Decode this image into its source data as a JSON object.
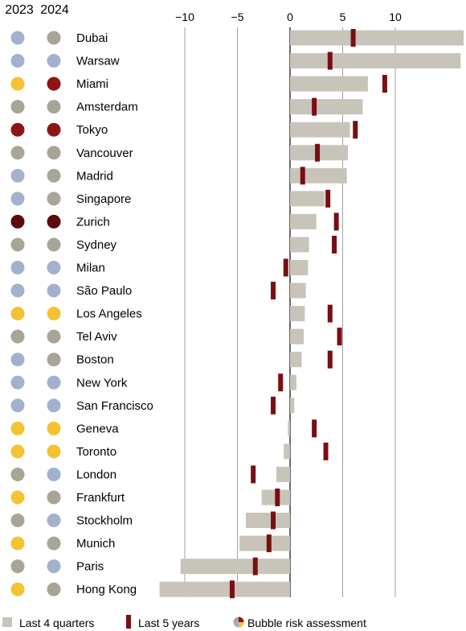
{
  "chart_data": {
    "type": "bar",
    "column_headers": [
      "2023",
      "2024"
    ],
    "x_ticks": [
      "−10",
      "−5",
      "0",
      "5",
      "10"
    ],
    "x_tick_values": [
      -10,
      -5,
      0,
      5,
      10
    ],
    "xlim": [
      -12.5,
      16.5
    ],
    "colors": {
      "grey": "#a8a597",
      "blue": "#a3b1cc",
      "yellow": "#f6c232",
      "red": "#8f1416",
      "darkred": "#5c0a0c",
      "bar": "#c8c4ba",
      "marker": "#7a0e12",
      "gridline": "#8a8a8a"
    },
    "categories": [
      "Dubai",
      "Warsaw",
      "Miami",
      "Amsterdam",
      "Tokyo",
      "Vancouver",
      "Madrid",
      "Singapore",
      "Zurich",
      "Sydney",
      "Milan",
      "São Paulo",
      "Los Angeles",
      "Tel Aviv",
      "Boston",
      "New York",
      "San Francisco",
      "Geneva",
      "Toronto",
      "London",
      "Frankfurt",
      "Stockholm",
      "Munich",
      "Paris",
      "Hong Kong"
    ],
    "series": [
      {
        "name": "Last 4 quarters",
        "type": "bar",
        "values": [
          16.5,
          16.2,
          7.4,
          6.9,
          5.7,
          5.5,
          5.4,
          3.3,
          2.5,
          1.8,
          1.7,
          1.5,
          1.4,
          1.3,
          1.1,
          0.6,
          0.4,
          -0.2,
          -0.6,
          -1.3,
          -2.7,
          -4.2,
          -4.8,
          -10.4,
          -12.4
        ]
      },
      {
        "name": "Last 5 years",
        "type": "marker",
        "values": [
          6.0,
          3.8,
          9.0,
          2.3,
          6.2,
          2.6,
          1.2,
          3.6,
          4.4,
          4.2,
          -0.4,
          -1.6,
          3.8,
          4.7,
          3.8,
          -0.9,
          -1.6,
          2.3,
          3.4,
          -3.5,
          -1.2,
          -1.6,
          -2.0,
          -3.3,
          -5.5
        ]
      }
    ],
    "bubble_risk_assessment": {
      "2023": [
        "blue",
        "blue",
        "yellow",
        "grey",
        "red",
        "grey",
        "blue",
        "blue",
        "darkred",
        "grey",
        "blue",
        "blue",
        "yellow",
        "grey",
        "blue",
        "blue",
        "blue",
        "yellow",
        "yellow",
        "grey",
        "yellow",
        "grey",
        "yellow",
        "grey",
        "yellow"
      ],
      "2024": [
        "grey",
        "blue",
        "red",
        "grey",
        "red",
        "grey",
        "grey",
        "grey",
        "darkred",
        "grey",
        "blue",
        "blue",
        "yellow",
        "grey",
        "grey",
        "blue",
        "blue",
        "yellow",
        "yellow",
        "blue",
        "grey",
        "blue",
        "grey",
        "blue",
        "grey"
      ]
    },
    "legend": {
      "placement": "bottom",
      "items": [
        "Last 4 quarters",
        "Last 5 years",
        "Bubble risk assessment"
      ]
    },
    "grid": true
  }
}
